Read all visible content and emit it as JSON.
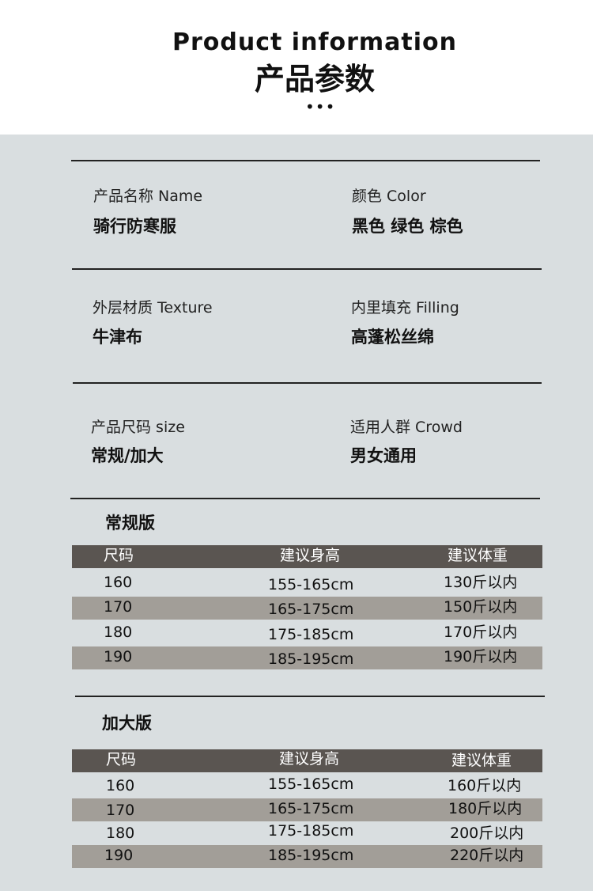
{
  "header": {
    "title_en": "Product information",
    "title_cn": "产品参数",
    "dots": "•••"
  },
  "info": [
    {
      "label": "产品名称  Name",
      "value": "骑行防寒服"
    },
    {
      "label": "颜色  Color",
      "value": "黑色 绿色 棕色"
    },
    {
      "label": "外层材质  Texture",
      "value": "牛津布"
    },
    {
      "label": "内里填充  Filling",
      "value": "高蓬松丝绵"
    },
    {
      "label": "产品尺码 size",
      "value": "常规/加大"
    },
    {
      "label": "适用人群  Crowd",
      "value": "男女通用"
    }
  ],
  "tables": [
    {
      "title": "常规版",
      "headers": [
        "尺码",
        "建议身高",
        "建议体重"
      ],
      "rows": [
        [
          "160",
          "155-165cm",
          "130斤以内"
        ],
        [
          "170",
          "165-175cm",
          "150斤以内"
        ],
        [
          "180",
          "175-185cm",
          "170斤以内"
        ],
        [
          "190",
          "185-195cm",
          "190斤以内"
        ]
      ]
    },
    {
      "title": "加大版",
      "headers": [
        "尺码",
        "建议身高",
        "建议体重"
      ],
      "rows": [
        [
          "160",
          "155-165cm",
          "160斤以内"
        ],
        [
          "170",
          "165-175cm",
          "180斤以内"
        ],
        [
          "180",
          "175-185cm",
          "200斤以内"
        ],
        [
          "190",
          "185-195cm",
          "220斤以内"
        ]
      ]
    }
  ],
  "colors": {
    "header_row": "#5a5551",
    "striped_row": "#a29e98",
    "background": "#d9dee0"
  }
}
